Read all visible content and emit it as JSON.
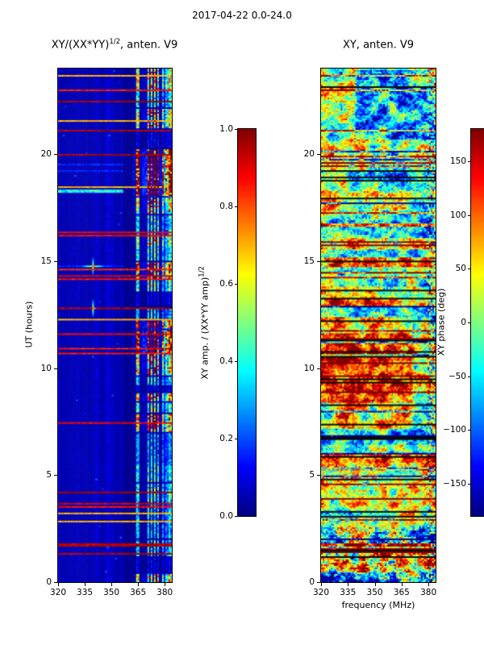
{
  "figure": {
    "suptitle": "2017-04-22 0.0-24.0"
  },
  "palette": {
    "colormap": "jet",
    "background": "#ffffff",
    "frame": "#000000",
    "low_color": "#000080",
    "high_color": "#800000"
  },
  "chart_data": [
    {
      "type": "heatmap",
      "panel": "left",
      "title_parts": {
        "prefix": "XY/(XX*YY)",
        "sup": "1/2",
        "suffix": ", anten. V9"
      },
      "title_plain": "XY/(XX*YY)^(1/2), anten. V9",
      "xlabel": "",
      "ylabel": "UT (hours)",
      "x_ticks": [
        "320",
        "335",
        "350",
        "365",
        "380"
      ],
      "x_tick_values": [
        320,
        335,
        350,
        365,
        380
      ],
      "y_ticks": [
        "0",
        "5",
        "10",
        "15",
        "20"
      ],
      "y_tick_values": [
        0,
        5,
        10,
        15,
        20
      ],
      "xlim": [
        320,
        384
      ],
      "ylim": [
        0,
        24
      ],
      "grid": false,
      "colormap": "jet",
      "colorbar": {
        "label_parts": {
          "prefix": "XY amp. / (XX*YY amp)",
          "sup": "1/2",
          "suffix": ""
        },
        "label_plain": "XY amp. / (XX*YY amp)^(1/2)",
        "tick_labels": [
          "1.0",
          "0.8",
          "0.6",
          "0.4",
          "0.2",
          "0.0"
        ],
        "tick_values": [
          1.0,
          0.8,
          0.6,
          0.4,
          0.2,
          0.0
        ],
        "range": [
          0.0,
          1.0
        ]
      },
      "content_summary": {
        "quiet_background_value": 0.05,
        "active_band_mhz": [
          358,
          384
        ],
        "active_band_values": [
          0.3,
          1.0
        ],
        "rfi_lines": "horizontal full-width lines with value ~0.9-1.0 scattered across all hours",
        "hot_time_ranges_hours": [
          [
            11.0,
            12.4
          ],
          [
            18.0,
            19.8
          ]
        ],
        "bright_cross_artifacts": [
          {
            "hour": 14.8,
            "mhz": 339
          },
          {
            "hour": 12.9,
            "mhz": 339
          }
        ]
      }
    },
    {
      "type": "heatmap",
      "panel": "right",
      "title_parts": {
        "prefix": "XY, anten. V9",
        "sup": "",
        "suffix": ""
      },
      "title_plain": "XY, anten. V9",
      "xlabel": "frequency (MHz)",
      "ylabel": "",
      "right_label": "XY phase (deg)",
      "x_ticks": [
        "320",
        "335",
        "350",
        "365",
        "380"
      ],
      "x_tick_values": [
        320,
        335,
        350,
        365,
        380
      ],
      "y_ticks": [
        "0",
        "5",
        "10",
        "15",
        "20"
      ],
      "y_tick_values": [
        0,
        5,
        10,
        15,
        20
      ],
      "xlim": [
        320,
        384
      ],
      "ylim": [
        0,
        24
      ],
      "grid": false,
      "colormap": "jet",
      "colorbar": {
        "label_parts": {
          "prefix": "",
          "sup": "",
          "suffix": ""
        },
        "label_plain": "",
        "tick_labels": [
          "150",
          "100",
          "50",
          "0",
          "−50",
          "−100",
          "−150"
        ],
        "tick_values": [
          150,
          100,
          50,
          0,
          -50,
          -100,
          -150
        ],
        "range": [
          -180,
          180
        ]
      },
      "content_summary": {
        "phase_range_deg": [
          -180,
          180
        ],
        "appearance": "noisy phase pattern with frequent horizontal black dropout lines",
        "coherent_positive_phase_hours": [
          7.2,
          12.4
        ],
        "negative_phase_patches_hours": [
          [
            15.8,
            19.6
          ],
          [
            20.7,
            23.9
          ]
        ]
      }
    }
  ]
}
